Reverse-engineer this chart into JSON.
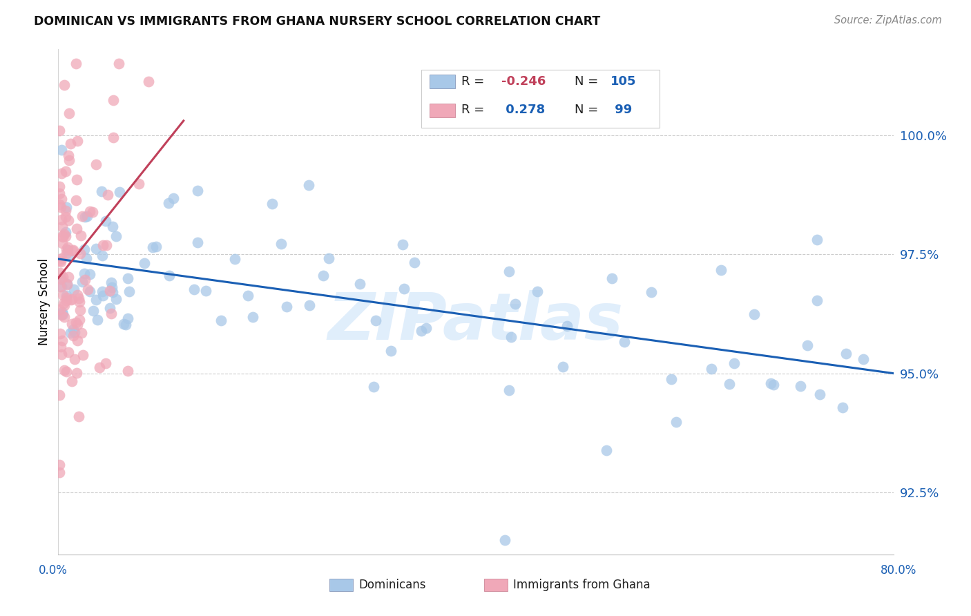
{
  "title": "DOMINICAN VS IMMIGRANTS FROM GHANA NURSERY SCHOOL CORRELATION CHART",
  "source": "Source: ZipAtlas.com",
  "ylabel": "Nursery School",
  "yticks": [
    92.5,
    95.0,
    97.5,
    100.0
  ],
  "ytick_labels": [
    "92.5%",
    "95.0%",
    "97.5%",
    "100.0%"
  ],
  "xlim": [
    0.0,
    80.0
  ],
  "ylim": [
    91.2,
    101.8
  ],
  "legend_labels": [
    "Dominicans",
    "Immigrants from Ghana"
  ],
  "blue_R": -0.246,
  "blue_N": 105,
  "pink_R": 0.278,
  "pink_N": 99,
  "blue_color": "#a8c8e8",
  "pink_color": "#f0a8b8",
  "blue_line_color": "#1a5fb4",
  "pink_line_color": "#c0405a",
  "watermark": "ZIPatlas",
  "blue_line_x0": 0,
  "blue_line_x1": 80,
  "blue_line_y0": 97.4,
  "blue_line_y1": 95.0,
  "pink_line_x0": 0,
  "pink_line_x1": 12,
  "pink_line_y0": 97.0,
  "pink_line_y1": 100.3
}
